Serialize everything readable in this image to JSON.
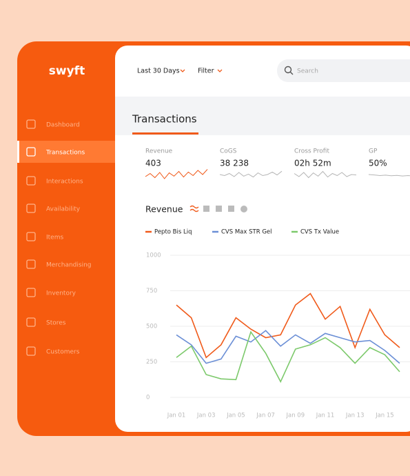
{
  "sidebar": {
    "logo": "swyft",
    "nav": [
      "Dashboard",
      "Transactions",
      "Interactions",
      "Availability",
      "Items",
      "Merchandising",
      "Inventory",
      "Stores",
      "Customers"
    ],
    "active": 1
  },
  "topbar": {
    "date_filter": "Last 30 Days",
    "filter": "Filter",
    "search_placeholder": "Search"
  },
  "page_title": "Transactions",
  "kpis": [
    {
      "label": "Revenue",
      "value": "403",
      "sparkline": {
        "color": "#f05a1a",
        "values": [
          40,
          55,
          35,
          60,
          30,
          58,
          42,
          65,
          38,
          62,
          45,
          70,
          50,
          75
        ]
      }
    },
    {
      "label": "CoGS",
      "value": "38 238",
      "sparkline": {
        "color": "#b5b5b5",
        "values": [
          50,
          45,
          55,
          40,
          60,
          42,
          52,
          38,
          58,
          45,
          50,
          62,
          48,
          66
        ]
      }
    },
    {
      "label": "Cross Profit",
      "value": "02h 52m",
      "sparkline": {
        "color": "#b5b5b5",
        "values": [
          55,
          40,
          60,
          35,
          58,
          42,
          65,
          38,
          55,
          45,
          60,
          40,
          50,
          48
        ]
      }
    },
    {
      "label": "GP",
      "value": "50%",
      "sparkline": {
        "color": "#b5b5b5",
        "values": [
          50,
          48,
          45,
          47,
          44,
          46,
          43,
          45,
          42,
          44,
          43,
          45
        ]
      }
    }
  ],
  "chart_data": {
    "type": "line",
    "title": "Revenue",
    "categories": [
      "Jan 01",
      null,
      "Jan 03",
      null,
      "Jan 05",
      null,
      "Jan 07",
      null,
      "Jan 09",
      null,
      "Jan 11",
      null,
      "Jan 13",
      null,
      "Jan 15",
      null
    ],
    "series": [
      {
        "name": "Pepto Bis Liq",
        "color": "#f05a1a",
        "values": [
          650,
          560,
          280,
          370,
          560,
          480,
          420,
          440,
          650,
          730,
          550,
          640,
          350,
          620,
          440,
          350
        ]
      },
      {
        "name": "CVS Max STR Gel",
        "color": "#6b8fd6",
        "values": [
          440,
          370,
          240,
          270,
          430,
          390,
          470,
          360,
          440,
          380,
          450,
          420,
          390,
          400,
          330,
          240
        ]
      },
      {
        "name": "CVS Tx Value",
        "color": "#7cc96b",
        "values": [
          280,
          360,
          160,
          130,
          125,
          460,
          310,
          110,
          340,
          370,
          420,
          350,
          240,
          350,
          300,
          180
        ]
      }
    ],
    "ylim": [
      0,
      1000
    ],
    "yticks": [
      0,
      250,
      500,
      750,
      1000
    ],
    "grid": true
  }
}
